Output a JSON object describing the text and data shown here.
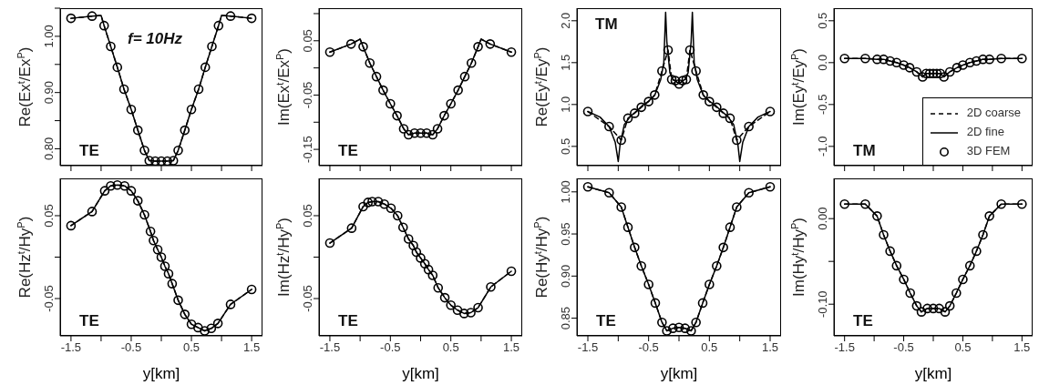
{
  "chart_data": [
    {
      "type": "line",
      "ylabel": "Re(Ex$^{t}$/Ex$^{P}$)",
      "xlim": [
        -1.68,
        1.68
      ],
      "xticks": [
        -1.5,
        {
          "value": -1,
          "label": null
        },
        -0.5,
        {
          "value": 0,
          "label": null
        },
        0.5,
        {
          "value": 1,
          "label": null
        },
        1.5
      ],
      "ylim": [
        0.77,
        1.05
      ],
      "yticks": [
        {
          "value": 0.8,
          "label": "0.80"
        },
        {
          "value": 0.85,
          "label": null
        },
        {
          "value": 0.9,
          "label": "0.90"
        },
        {
          "value": 0.95,
          "label": null
        },
        {
          "value": 1,
          "label": "1.00"
        },
        {
          "value": 1.05,
          "label": null
        }
      ],
      "tick_labels": "y",
      "annotations": [
        "f= 10Hz",
        "TE"
      ],
      "series": [
        {
          "color": "#000000",
          "line_style": "dashed",
          "marker": "none",
          "x": [
            -1.5,
            -1.15,
            -1,
            -0.95,
            -0.84,
            -0.73,
            -0.62,
            -0.5,
            -0.39,
            -0.28,
            -0.2,
            -0.1,
            0,
            0.1,
            0.2,
            0.28,
            0.39,
            0.5,
            0.62,
            0.73,
            0.84,
            0.95,
            1,
            1.15,
            1.5
          ],
          "values": [
            1.032,
            1.036,
            1.037,
            1.019,
            0.982,
            0.945,
            0.906,
            0.87,
            0.833,
            0.797,
            0.779,
            0.778,
            0.778,
            0.778,
            0.779,
            0.797,
            0.833,
            0.87,
            0.906,
            0.945,
            0.982,
            1.019,
            1.037,
            1.036,
            1.032
          ]
        },
        {
          "color": "#000000",
          "line_style": "solid",
          "marker": "none",
          "x": [
            -1.5,
            -1.15,
            -1,
            -0.95,
            -0.84,
            -0.73,
            -0.62,
            -0.5,
            -0.39,
            -0.28,
            -0.2,
            -0.1,
            0,
            0.1,
            0.2,
            0.28,
            0.39,
            0.5,
            0.62,
            0.73,
            0.84,
            0.95,
            1,
            1.15,
            1.5
          ],
          "values": [
            1.032,
            1.036,
            1.037,
            1.019,
            0.982,
            0.945,
            0.906,
            0.87,
            0.833,
            0.797,
            0.779,
            0.778,
            0.778,
            0.778,
            0.779,
            0.797,
            0.833,
            0.87,
            0.906,
            0.945,
            0.982,
            1.019,
            1.037,
            1.036,
            1.032
          ]
        },
        {
          "type": "scatter",
          "color": "#000000",
          "marker": "circle",
          "x": [
            -1.5,
            -1.15,
            -0.95,
            -0.84,
            -0.73,
            -0.62,
            -0.5,
            -0.39,
            -0.28,
            -0.2,
            -0.1,
            0,
            0.1,
            0.2,
            0.28,
            0.39,
            0.5,
            0.62,
            0.73,
            0.84,
            0.95,
            1.15,
            1.5
          ],
          "values": [
            1.032,
            1.036,
            1.019,
            0.982,
            0.945,
            0.906,
            0.87,
            0.833,
            0.797,
            0.779,
            0.778,
            0.778,
            0.778,
            0.779,
            0.797,
            0.833,
            0.87,
            0.906,
            0.945,
            0.982,
            1.019,
            1.036,
            1.032
          ]
        }
      ]
    },
    {
      "type": "line",
      "ylabel": "Im(Ex$^{t}$/Ex$^{P}$)",
      "xlim": [
        -1.68,
        1.68
      ],
      "xticks": [
        -1.5,
        {
          "value": -1,
          "label": null
        },
        -0.5,
        {
          "value": 0,
          "label": null
        },
        0.5,
        {
          "value": 1,
          "label": null
        },
        1.5
      ],
      "ylim": [
        -0.18,
        0.11
      ],
      "yticks": [
        {
          "value": -0.15,
          "label": "-0.15"
        },
        {
          "value": -0.1,
          "label": null
        },
        {
          "value": -0.05,
          "label": "-0.05"
        },
        {
          "value": 0,
          "label": null
        },
        {
          "value": 0.05,
          "label": "0.05"
        },
        {
          "value": 0.1,
          "label": null
        }
      ],
      "tick_labels": "y",
      "annotations": [
        "TE"
      ],
      "series": [
        {
          "color": "#000000",
          "line_style": "dashed",
          "marker": "none",
          "x": [
            -1.5,
            -1.15,
            -1,
            -0.95,
            -0.84,
            -0.73,
            -0.62,
            -0.5,
            -0.39,
            -0.28,
            -0.2,
            -0.1,
            0,
            0.1,
            0.2,
            0.28,
            0.39,
            0.5,
            0.62,
            0.73,
            0.84,
            0.95,
            1,
            1.15,
            1.5
          ],
          "values": [
            0.029,
            0.044,
            0.053,
            0.039,
            0.009,
            -0.016,
            -0.041,
            -0.066,
            -0.088,
            -0.112,
            -0.123,
            -0.12,
            -0.12,
            -0.12,
            -0.123,
            -0.112,
            -0.088,
            -0.066,
            -0.041,
            -0.016,
            0.009,
            0.039,
            0.053,
            0.044,
            0.029
          ]
        },
        {
          "color": "#000000",
          "line_style": "solid",
          "marker": "none",
          "x": [
            -1.5,
            -1.15,
            -1,
            -0.95,
            -0.84,
            -0.73,
            -0.62,
            -0.5,
            -0.39,
            -0.28,
            -0.2,
            -0.1,
            0,
            0.1,
            0.2,
            0.28,
            0.39,
            0.5,
            0.62,
            0.73,
            0.84,
            0.95,
            1,
            1.15,
            1.5
          ],
          "values": [
            0.029,
            0.044,
            0.053,
            0.039,
            0.009,
            -0.016,
            -0.041,
            -0.066,
            -0.088,
            -0.112,
            -0.123,
            -0.12,
            -0.12,
            -0.12,
            -0.123,
            -0.112,
            -0.088,
            -0.066,
            -0.041,
            -0.016,
            0.009,
            0.039,
            0.053,
            0.044,
            0.029
          ]
        },
        {
          "type": "scatter",
          "color": "#000000",
          "marker": "circle",
          "x": [
            -1.5,
            -1.15,
            -0.95,
            -0.84,
            -0.73,
            -0.62,
            -0.5,
            -0.39,
            -0.28,
            -0.2,
            -0.1,
            0,
            0.1,
            0.2,
            0.28,
            0.39,
            0.5,
            0.62,
            0.73,
            0.84,
            0.95,
            1.15,
            1.5
          ],
          "values": [
            0.029,
            0.044,
            0.039,
            0.009,
            -0.016,
            -0.041,
            -0.066,
            -0.088,
            -0.112,
            -0.123,
            -0.12,
            -0.12,
            -0.12,
            -0.123,
            -0.112,
            -0.088,
            -0.066,
            -0.041,
            -0.016,
            0.009,
            0.039,
            0.044,
            0.029
          ]
        }
      ]
    },
    {
      "type": "line",
      "ylabel": "Re(Ey$^{t}$/Ey$^{P}$)",
      "xlim": [
        -1.68,
        1.68
      ],
      "xticks": [
        -1.5,
        {
          "value": -1,
          "label": null
        },
        -0.5,
        {
          "value": 0,
          "label": null
        },
        0.5,
        {
          "value": 1,
          "label": null
        },
        1.5
      ],
      "ylim": [
        0.27,
        2.15
      ],
      "yticks": [
        0.5,
        {
          "value": 1,
          "label": "1.0"
        },
        1.5,
        {
          "value": 2,
          "label": "2.0"
        }
      ],
      "tick_labels": "y",
      "annotations": [
        "TM"
      ],
      "series": [
        {
          "color": "#000000",
          "line_style": "dashed",
          "marker": "none",
          "x": [
            -1.5,
            -1.15,
            -0.95,
            -0.84,
            -0.73,
            -0.62,
            -0.5,
            -0.4,
            -0.28,
            -0.18,
            -0.12,
            -0.06,
            0,
            0.06,
            0.12,
            0.18,
            0.28,
            0.4,
            0.5,
            0.62,
            0.73,
            0.84,
            0.95,
            1.15,
            1.5
          ],
          "values": [
            0.916,
            0.737,
            0.575,
            0.836,
            0.896,
            0.967,
            1.035,
            1.114,
            1.4,
            1.65,
            1.3,
            1.285,
            1.245,
            1.285,
            1.3,
            1.65,
            1.4,
            1.114,
            1.035,
            0.967,
            0.896,
            0.836,
            0.575,
            0.737,
            0.916
          ]
        },
        {
          "color": "#000000",
          "line_style": "solid",
          "marker": "none",
          "x": [
            -1.5,
            -1.3,
            -1.15,
            -1.05,
            -1,
            -0.97,
            -0.9,
            -0.8,
            -0.7,
            -0.6,
            -0.5,
            -0.4,
            -0.3,
            -0.25,
            -0.22,
            -0.2,
            -0.15,
            -0.1,
            0,
            0.1,
            0.15,
            0.2,
            0.22,
            0.25,
            0.3,
            0.4,
            0.5,
            0.6,
            0.7,
            0.8,
            0.9,
            0.97,
            1,
            1.05,
            1.15,
            1.3,
            1.5
          ],
          "values": [
            0.916,
            0.85,
            0.737,
            0.55,
            0.32,
            0.52,
            0.76,
            0.86,
            0.92,
            0.99,
            1.04,
            1.11,
            1.3,
            1.5,
            2.1,
            1.75,
            1.38,
            1.3,
            1.25,
            1.3,
            1.38,
            1.75,
            2.1,
            1.5,
            1.3,
            1.11,
            1.04,
            0.99,
            0.92,
            0.86,
            0.76,
            0.52,
            0.32,
            0.55,
            0.737,
            0.85,
            0.916
          ]
        },
        {
          "type": "scatter",
          "color": "#000000",
          "marker": "circle",
          "x": [
            -1.5,
            -1.15,
            -0.95,
            -0.84,
            -0.73,
            -0.62,
            -0.5,
            -0.4,
            -0.28,
            -0.18,
            -0.12,
            -0.06,
            0,
            0.06,
            0.12,
            0.18,
            0.28,
            0.4,
            0.5,
            0.62,
            0.73,
            0.84,
            0.95,
            1.15,
            1.5
          ],
          "values": [
            0.916,
            0.737,
            0.575,
            0.836,
            0.896,
            0.967,
            1.035,
            1.114,
            1.4,
            1.65,
            1.3,
            1.285,
            1.245,
            1.285,
            1.3,
            1.65,
            1.4,
            1.114,
            1.035,
            0.967,
            0.896,
            0.836,
            0.575,
            0.737,
            0.916
          ]
        }
      ]
    },
    {
      "type": "line",
      "ylabel": "Im(Ey$^{t}$/Ey$^{P}$)",
      "xlim": [
        -1.68,
        1.68
      ],
      "xticks": [
        -1.5,
        {
          "value": -1,
          "label": null
        },
        -0.5,
        {
          "value": 0,
          "label": null
        },
        0.5,
        {
          "value": 1,
          "label": null
        },
        1.5
      ],
      "ylim": [
        -1.23,
        0.65
      ],
      "yticks": [
        {
          "value": -1,
          "label": "-1.0"
        },
        -0.5,
        {
          "value": 0,
          "label": "0.0"
        },
        0.5
      ],
      "tick_labels": "y",
      "annotations": [
        "TM"
      ],
      "legend": "bottom right",
      "series": [
        {
          "name": "2D coarse",
          "color": "#000000",
          "line_style": "dashed",
          "marker": "none",
          "x": [
            -1.5,
            -1.15,
            -0.95,
            -0.84,
            -0.73,
            -0.62,
            -0.5,
            -0.4,
            -0.28,
            -0.18,
            -0.12,
            -0.06,
            0,
            0.06,
            0.12,
            0.18,
            0.28,
            0.4,
            0.5,
            0.62,
            0.73,
            0.84,
            0.95,
            1.15,
            1.5
          ],
          "values": [
            0.05,
            0.05,
            0.04,
            0.04,
            0.02,
            0,
            -0.03,
            -0.06,
            -0.11,
            -0.17,
            -0.13,
            -0.13,
            -0.13,
            -0.13,
            -0.13,
            -0.17,
            -0.11,
            -0.06,
            -0.03,
            0,
            0.02,
            0.04,
            0.04,
            0.05,
            0.05
          ]
        },
        {
          "name": "2D fine",
          "color": "#000000",
          "line_style": "solid",
          "marker": "none",
          "x": [
            -1.5,
            -1.15,
            -0.95,
            -0.84,
            -0.73,
            -0.62,
            -0.5,
            -0.4,
            -0.28,
            -0.18,
            -0.12,
            -0.06,
            0,
            0.06,
            0.12,
            0.18,
            0.28,
            0.4,
            0.5,
            0.62,
            0.73,
            0.84,
            0.95,
            1.15,
            1.5
          ],
          "values": [
            0.05,
            0.05,
            0.04,
            0.04,
            0.02,
            0,
            -0.03,
            -0.06,
            -0.11,
            -0.17,
            -0.13,
            -0.13,
            -0.13,
            -0.13,
            -0.13,
            -0.17,
            -0.11,
            -0.06,
            -0.03,
            0,
            0.02,
            0.04,
            0.04,
            0.05,
            0.05
          ]
        },
        {
          "name": "3D FEM",
          "type": "scatter",
          "color": "#000000",
          "marker": "circle",
          "x": [
            -1.5,
            -1.15,
            -0.95,
            -0.84,
            -0.73,
            -0.62,
            -0.5,
            -0.4,
            -0.28,
            -0.18,
            -0.12,
            -0.06,
            0,
            0.06,
            0.12,
            0.18,
            0.28,
            0.4,
            0.5,
            0.62,
            0.73,
            0.84,
            0.95,
            1.15,
            1.5
          ],
          "values": [
            0.05,
            0.05,
            0.04,
            0.04,
            0.02,
            0,
            -0.03,
            -0.06,
            -0.11,
            -0.17,
            -0.13,
            -0.13,
            -0.13,
            -0.13,
            -0.13,
            -0.17,
            -0.11,
            -0.06,
            -0.03,
            0,
            0.02,
            0.04,
            0.04,
            0.05,
            0.05
          ]
        }
      ]
    },
    {
      "type": "line",
      "xlabel": "y[km]",
      "ylabel": "Re(Hz$^{t}$/Hy$^{P}$)",
      "xlim": [
        -1.68,
        1.68
      ],
      "xticks": [
        -1.5,
        {
          "value": -1,
          "label": null
        },
        -0.5,
        {
          "value": 0,
          "label": null
        },
        0.5,
        {
          "value": 1,
          "label": null
        },
        1.5
      ],
      "ylim": [
        -0.095,
        0.095
      ],
      "yticks": [
        -0.05,
        {
          "value": 0,
          "label": null
        },
        0.05
      ],
      "annotations": [
        "TE"
      ],
      "series": [
        {
          "color": "#000000",
          "line_style": "dashed",
          "marker": "none",
          "x": [
            -1.5,
            -1.15,
            -0.94,
            -0.84,
            -0.73,
            -0.61,
            -0.5,
            -0.39,
            -0.28,
            -0.18,
            -0.13,
            -0.06,
            0,
            0.06,
            0.12,
            0.18,
            0.28,
            0.39,
            0.5,
            0.61,
            0.72,
            0.83,
            0.94,
            1.15,
            1.5
          ],
          "values": [
            0.038,
            0.055,
            0.08,
            0.086,
            0.087,
            0.086,
            0.08,
            0.068,
            0.051,
            0.031,
            0.02,
            0.009,
            0,
            -0.011,
            -0.02,
            -0.032,
            -0.052,
            -0.069,
            -0.081,
            -0.085,
            -0.089,
            -0.086,
            -0.08,
            -0.057,
            -0.039
          ]
        },
        {
          "color": "#000000",
          "line_style": "solid",
          "marker": "none",
          "x": [
            -1.5,
            -1.15,
            -0.94,
            -0.84,
            -0.73,
            -0.61,
            -0.5,
            -0.39,
            -0.28,
            -0.18,
            -0.13,
            -0.06,
            0,
            0.06,
            0.12,
            0.18,
            0.28,
            0.39,
            0.5,
            0.61,
            0.72,
            0.83,
            0.94,
            1.15,
            1.5
          ],
          "values": [
            0.038,
            0.055,
            0.08,
            0.086,
            0.087,
            0.086,
            0.08,
            0.068,
            0.051,
            0.031,
            0.02,
            0.009,
            0,
            -0.011,
            -0.02,
            -0.032,
            -0.052,
            -0.069,
            -0.081,
            -0.085,
            -0.089,
            -0.086,
            -0.08,
            -0.057,
            -0.039
          ]
        },
        {
          "type": "scatter",
          "color": "#000000",
          "marker": "circle",
          "x": [
            -1.5,
            -1.15,
            -0.94,
            -0.84,
            -0.73,
            -0.61,
            -0.5,
            -0.39,
            -0.28,
            -0.18,
            -0.13,
            -0.06,
            0,
            0.06,
            0.12,
            0.18,
            0.28,
            0.39,
            0.5,
            0.61,
            0.72,
            0.83,
            0.94,
            1.15,
            1.5
          ],
          "values": [
            0.038,
            0.055,
            0.08,
            0.086,
            0.087,
            0.086,
            0.08,
            0.068,
            0.051,
            0.031,
            0.02,
            0.009,
            0,
            -0.011,
            -0.02,
            -0.032,
            -0.052,
            -0.069,
            -0.081,
            -0.085,
            -0.089,
            -0.086,
            -0.08,
            -0.057,
            -0.039
          ]
        }
      ]
    },
    {
      "type": "line",
      "xlabel": "y[km]",
      "ylabel": "Im(Hz$^{t}$/Hy$^{P}$)",
      "xlim": [
        -1.68,
        1.68
      ],
      "xticks": [
        -1.5,
        {
          "value": -1,
          "label": null
        },
        -0.5,
        {
          "value": 0,
          "label": null
        },
        0.5,
        {
          "value": 1,
          "label": null
        },
        1.5
      ],
      "ylim": [
        -0.095,
        0.095
      ],
      "yticks": [
        -0.05,
        {
          "value": 0,
          "label": null
        },
        0.05
      ],
      "annotations": [
        "TE"
      ],
      "series": [
        {
          "color": "#000000",
          "line_style": "dashed",
          "marker": "none",
          "x": [
            -1.5,
            -1.14,
            -0.95,
            -0.87,
            -0.8,
            -0.7,
            -0.6,
            -0.49,
            -0.38,
            -0.29,
            -0.2,
            -0.12,
            -0.07,
            0,
            0.07,
            0.13,
            0.2,
            0.29,
            0.4,
            0.5,
            0.61,
            0.72,
            0.83,
            0.95,
            1.16,
            1.5
          ],
          "values": [
            0.017,
            0.035,
            0.061,
            0.066,
            0.067,
            0.067,
            0.064,
            0.059,
            0.05,
            0.036,
            0.022,
            0.014,
            0.006,
            -0.001,
            -0.008,
            -0.015,
            -0.022,
            -0.037,
            -0.049,
            -0.058,
            -0.064,
            -0.068,
            -0.067,
            -0.061,
            -0.036,
            -0.017
          ]
        },
        {
          "color": "#000000",
          "line_style": "solid",
          "marker": "none",
          "x": [
            -1.5,
            -1.14,
            -0.95,
            -0.87,
            -0.8,
            -0.7,
            -0.6,
            -0.49,
            -0.38,
            -0.29,
            -0.2,
            -0.12,
            -0.07,
            0,
            0.07,
            0.13,
            0.2,
            0.29,
            0.4,
            0.5,
            0.61,
            0.72,
            0.83,
            0.95,
            1.16,
            1.5
          ],
          "values": [
            0.017,
            0.035,
            0.061,
            0.066,
            0.067,
            0.067,
            0.064,
            0.059,
            0.05,
            0.036,
            0.022,
            0.014,
            0.006,
            -0.001,
            -0.008,
            -0.015,
            -0.022,
            -0.037,
            -0.049,
            -0.058,
            -0.064,
            -0.068,
            -0.067,
            -0.061,
            -0.036,
            -0.017
          ]
        },
        {
          "type": "scatter",
          "color": "#000000",
          "marker": "circle",
          "x": [
            -1.5,
            -1.14,
            -0.95,
            -0.87,
            -0.8,
            -0.7,
            -0.6,
            -0.49,
            -0.38,
            -0.29,
            -0.2,
            -0.12,
            -0.07,
            0,
            0.07,
            0.13,
            0.2,
            0.29,
            0.4,
            0.5,
            0.61,
            0.72,
            0.83,
            0.95,
            1.16,
            1.5
          ],
          "values": [
            0.017,
            0.035,
            0.061,
            0.066,
            0.067,
            0.067,
            0.064,
            0.059,
            0.05,
            0.036,
            0.022,
            0.014,
            0.006,
            -0.001,
            -0.008,
            -0.015,
            -0.022,
            -0.037,
            -0.049,
            -0.058,
            -0.064,
            -0.068,
            -0.067,
            -0.061,
            -0.036,
            -0.017
          ]
        }
      ]
    },
    {
      "type": "line",
      "xlabel": "y[km]",
      "ylabel": "Re(Hy$^{t}$/Hy$^{P}$)",
      "xlim": [
        -1.68,
        1.68
      ],
      "xticks": [
        -1.5,
        {
          "value": -1,
          "label": null
        },
        -0.5,
        {
          "value": 0,
          "label": null
        },
        0.5,
        {
          "value": 1,
          "label": null
        },
        1.5
      ],
      "ylim": [
        0.829,
        1.016
      ],
      "yticks": [
        0.85,
        {
          "value": 0.9,
          "label": "0.90"
        },
        0.95,
        {
          "value": 1,
          "label": "1.00"
        }
      ],
      "annotations": [
        "TE"
      ],
      "series": [
        {
          "color": "#000000",
          "line_style": "dashed",
          "marker": "none",
          "x": [
            -1.5,
            -1.15,
            -0.95,
            -0.84,
            -0.73,
            -0.62,
            -0.5,
            -0.39,
            -0.28,
            -0.2,
            -0.1,
            0,
            0.1,
            0.2,
            0.28,
            0.39,
            0.5,
            0.62,
            0.73,
            0.84,
            0.95,
            1.15,
            1.5
          ],
          "values": [
            1.006,
            0.999,
            0.982,
            0.958,
            0.934,
            0.912,
            0.89,
            0.868,
            0.845,
            0.835,
            0.838,
            0.839,
            0.838,
            0.835,
            0.845,
            0.868,
            0.89,
            0.912,
            0.934,
            0.958,
            0.982,
            0.999,
            1.006
          ]
        },
        {
          "color": "#000000",
          "line_style": "solid",
          "marker": "none",
          "x": [
            -1.5,
            -1.15,
            -0.95,
            -0.84,
            -0.73,
            -0.62,
            -0.5,
            -0.39,
            -0.28,
            -0.2,
            -0.1,
            0,
            0.1,
            0.2,
            0.28,
            0.39,
            0.5,
            0.62,
            0.73,
            0.84,
            0.95,
            1.15,
            1.5
          ],
          "values": [
            1.006,
            0.999,
            0.982,
            0.958,
            0.934,
            0.912,
            0.89,
            0.868,
            0.845,
            0.835,
            0.838,
            0.839,
            0.838,
            0.835,
            0.845,
            0.868,
            0.89,
            0.912,
            0.934,
            0.958,
            0.982,
            0.999,
            1.006
          ]
        },
        {
          "type": "scatter",
          "color": "#000000",
          "marker": "circle",
          "x": [
            -1.5,
            -1.15,
            -0.95,
            -0.84,
            -0.73,
            -0.62,
            -0.5,
            -0.39,
            -0.28,
            -0.2,
            -0.1,
            0,
            0.1,
            0.2,
            0.28,
            0.39,
            0.5,
            0.62,
            0.73,
            0.84,
            0.95,
            1.15,
            1.5
          ],
          "values": [
            1.006,
            0.999,
            0.982,
            0.958,
            0.934,
            0.912,
            0.89,
            0.868,
            0.845,
            0.835,
            0.838,
            0.839,
            0.838,
            0.835,
            0.845,
            0.868,
            0.89,
            0.912,
            0.934,
            0.958,
            0.982,
            0.999,
            1.006
          ]
        }
      ]
    },
    {
      "type": "line",
      "xlabel": "y[km]",
      "ylabel": "Im(Hy$^{t}$/Hy$^{P}$)",
      "xlim": [
        -1.68,
        1.68
      ],
      "xticks": [
        -1.5,
        {
          "value": -1,
          "label": null
        },
        -0.5,
        {
          "value": 0,
          "label": null
        },
        0.5,
        {
          "value": 1,
          "label": null
        },
        1.5
      ],
      "ylim": [
        -0.137,
        0.047
      ],
      "yticks": [
        {
          "value": -0.1,
          "label": "-0.10"
        },
        {
          "value": -0.05,
          "label": null
        },
        {
          "value": 0,
          "label": "0.00"
        }
      ],
      "annotations": [
        "TE"
      ],
      "series": [
        {
          "color": "#000000",
          "line_style": "dashed",
          "marker": "none",
          "x": [
            -1.5,
            -1.15,
            -0.95,
            -0.84,
            -0.73,
            -0.62,
            -0.5,
            -0.39,
            -0.28,
            -0.2,
            -0.1,
            0,
            0.1,
            0.2,
            0.28,
            0.39,
            0.5,
            0.62,
            0.73,
            0.84,
            0.95,
            1.15,
            1.5
          ],
          "values": [
            0.017,
            0.017,
            0.003,
            -0.019,
            -0.038,
            -0.055,
            -0.071,
            -0.087,
            -0.102,
            -0.109,
            -0.105,
            -0.105,
            -0.105,
            -0.109,
            -0.102,
            -0.087,
            -0.071,
            -0.055,
            -0.038,
            -0.019,
            0.003,
            0.017,
            0.017
          ]
        },
        {
          "color": "#000000",
          "line_style": "solid",
          "marker": "none",
          "x": [
            -1.5,
            -1.15,
            -0.95,
            -0.84,
            -0.73,
            -0.62,
            -0.5,
            -0.39,
            -0.28,
            -0.2,
            -0.1,
            0,
            0.1,
            0.2,
            0.28,
            0.39,
            0.5,
            0.62,
            0.73,
            0.84,
            0.95,
            1.15,
            1.5
          ],
          "values": [
            0.017,
            0.017,
            0.003,
            -0.019,
            -0.038,
            -0.055,
            -0.071,
            -0.087,
            -0.102,
            -0.109,
            -0.105,
            -0.105,
            -0.105,
            -0.109,
            -0.102,
            -0.087,
            -0.071,
            -0.055,
            -0.038,
            -0.019,
            0.003,
            0.017,
            0.017
          ]
        },
        {
          "type": "scatter",
          "color": "#000000",
          "marker": "circle",
          "x": [
            -1.5,
            -1.15,
            -0.95,
            -0.84,
            -0.73,
            -0.62,
            -0.5,
            -0.39,
            -0.28,
            -0.2,
            -0.1,
            0,
            0.1,
            0.2,
            0.28,
            0.39,
            0.5,
            0.62,
            0.73,
            0.84,
            0.95,
            1.15,
            1.5
          ],
          "values": [
            0.017,
            0.017,
            0.003,
            -0.019,
            -0.038,
            -0.055,
            -0.071,
            -0.087,
            -0.102,
            -0.109,
            -0.105,
            -0.105,
            -0.105,
            -0.109,
            -0.102,
            -0.087,
            -0.071,
            -0.055,
            -0.038,
            -0.019,
            0.003,
            0.017,
            0.017
          ]
        }
      ]
    }
  ]
}
